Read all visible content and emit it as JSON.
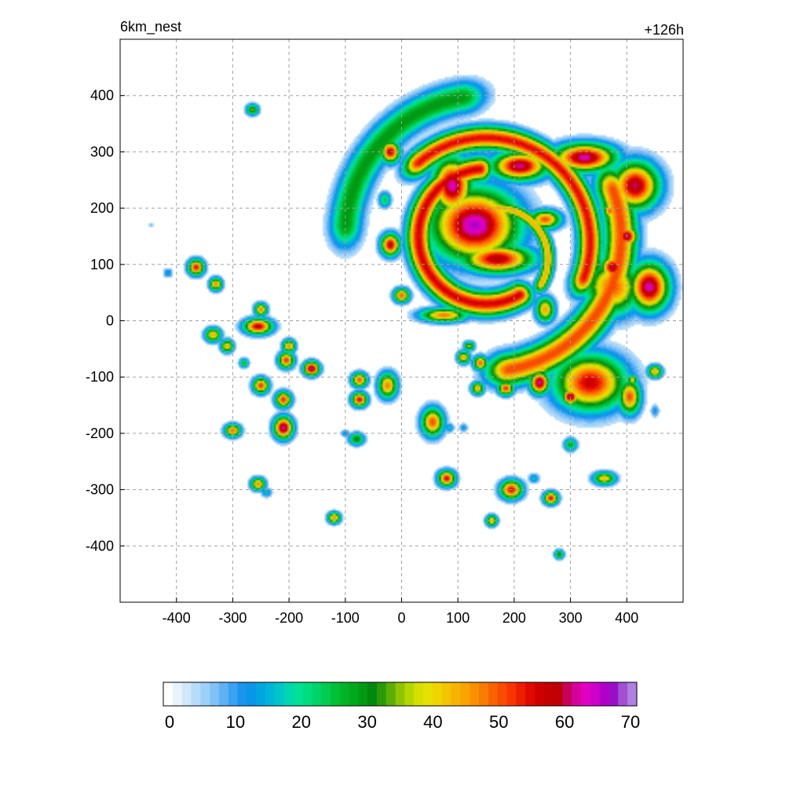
{
  "chart_data": {
    "type": "heatmap",
    "title": "6km_nest",
    "time_label": "+126h",
    "xlim": [
      -500,
      500
    ],
    "ylim": [
      -500,
      500
    ],
    "x_ticks": [
      -400,
      -300,
      -200,
      -100,
      0,
      100,
      200,
      300,
      400
    ],
    "y_ticks": [
      400,
      300,
      200,
      100,
      0,
      -100,
      -200,
      -300,
      -400
    ],
    "grid": true,
    "colorbar": {
      "min": 0,
      "max": 70,
      "tick_labels": [
        0,
        10,
        20,
        30,
        40,
        50,
        60,
        70
      ],
      "colors": [
        "#ffffff",
        "#e8f4fd",
        "#cfe8fb",
        "#b6dcfa",
        "#9dd0f8",
        "#80c2f6",
        "#5eb2f4",
        "#3aa2f2",
        "#1a94ee",
        "#0a96e8",
        "#00a6e0",
        "#00b6d8",
        "#00c6c8",
        "#00d6b0",
        "#00e098",
        "#00dc80",
        "#00d468",
        "#00cc50",
        "#00c038",
        "#00b428",
        "#00a81c",
        "#009a14",
        "#00880e",
        "#2a9a0a",
        "#5cae06",
        "#8ec402",
        "#b6d600",
        "#d6e000",
        "#e8e000",
        "#f0d400",
        "#f4c400",
        "#f6b400",
        "#f8a400",
        "#f89000",
        "#f87c00",
        "#f86400",
        "#f84c00",
        "#f83400",
        "#ee1c00",
        "#e00800",
        "#d00000",
        "#c40000",
        "#bc0004",
        "#c8005a",
        "#d8009c",
        "#e000c0",
        "#cc00c8",
        "#b000c8",
        "#9a10c8",
        "#a050d0",
        "#b080e0"
      ]
    },
    "features": [
      {
        "kind": "spiral-band",
        "cx": 150,
        "cy": 150,
        "r": 120,
        "a0": 95,
        "a1": 300,
        "w": 42,
        "peak": 48
      },
      {
        "kind": "spiral-band",
        "cx": 150,
        "cy": 140,
        "r": 185,
        "a0": -20,
        "a1": 130,
        "w": 40,
        "peak": 47
      },
      {
        "kind": "spiral-band",
        "cx": 170,
        "cy": 110,
        "r": 90,
        "a0": -30,
        "a1": 95,
        "w": 22,
        "peak": 38
      },
      {
        "kind": "spiral-band",
        "cx": 150,
        "cy": 150,
        "r": 240,
        "a0": -80,
        "a1": 20,
        "w": 55,
        "peak": 44
      },
      {
        "kind": "spiral-band",
        "cx": 150,
        "cy": 150,
        "r": 250,
        "a0": 100,
        "a1": 175,
        "w": 55,
        "peak": 26
      },
      {
        "kind": "blob",
        "x": 130,
        "y": 170,
        "sx": 55,
        "sy": 45,
        "peak": 52
      },
      {
        "kind": "blob",
        "x": 90,
        "y": 240,
        "sx": 25,
        "sy": 35,
        "peak": 50
      },
      {
        "kind": "blob",
        "x": 170,
        "y": 110,
        "sx": 45,
        "sy": 18,
        "peak": 47
      },
      {
        "kind": "blob",
        "x": 210,
        "y": 275,
        "sx": 35,
        "sy": 18,
        "peak": 49
      },
      {
        "kind": "blob",
        "x": 325,
        "y": 290,
        "sx": 40,
        "sy": 18,
        "peak": 50
      },
      {
        "kind": "blob",
        "x": 415,
        "y": 240,
        "sx": 30,
        "sy": 30,
        "peak": 48
      },
      {
        "kind": "blob",
        "x": 440,
        "y": 60,
        "sx": 25,
        "sy": 30,
        "peak": 50
      },
      {
        "kind": "blob",
        "x": 375,
        "y": 60,
        "sx": 35,
        "sy": 35,
        "peak": 40
      },
      {
        "kind": "blob",
        "x": 375,
        "y": 95,
        "sx": 15,
        "sy": 15,
        "peak": 48
      },
      {
        "kind": "blob",
        "x": 400,
        "y": 150,
        "sx": 14,
        "sy": 14,
        "peak": 48
      },
      {
        "kind": "blob",
        "x": 335,
        "y": -110,
        "sx": 45,
        "sy": 35,
        "peak": 45
      },
      {
        "kind": "blob",
        "x": 300,
        "y": -135,
        "sx": 10,
        "sy": 10,
        "peak": 50
      },
      {
        "kind": "blob",
        "x": -20,
        "y": 300,
        "sx": 12,
        "sy": 14,
        "peak": 46
      },
      {
        "kind": "blob",
        "x": -20,
        "y": 135,
        "sx": 12,
        "sy": 14,
        "peak": 46
      },
      {
        "kind": "blob",
        "x": 255,
        "y": 180,
        "sx": 20,
        "sy": 12,
        "peak": 40
      },
      {
        "kind": "blob",
        "x": 255,
        "y": 20,
        "sx": 12,
        "sy": 16,
        "peak": 36
      },
      {
        "kind": "blob",
        "x": 75,
        "y": 10,
        "sx": 30,
        "sy": 9,
        "peak": 38
      },
      {
        "kind": "blob",
        "x": 0,
        "y": 45,
        "sx": 10,
        "sy": 9,
        "peak": 40
      },
      {
        "kind": "blob",
        "x": -365,
        "y": 95,
        "sx": 10,
        "sy": 10,
        "peak": 44
      },
      {
        "kind": "blob",
        "x": -330,
        "y": 65,
        "sx": 8,
        "sy": 8,
        "peak": 38
      },
      {
        "kind": "blob",
        "x": -415,
        "y": 85,
        "sx": 6,
        "sy": 6,
        "peak": 12
      },
      {
        "kind": "blob",
        "x": -255,
        "y": -10,
        "sx": 18,
        "sy": 10,
        "peak": 46
      },
      {
        "kind": "blob",
        "x": -250,
        "y": 20,
        "sx": 8,
        "sy": 8,
        "peak": 38
      },
      {
        "kind": "blob",
        "x": -335,
        "y": -25,
        "sx": 10,
        "sy": 9,
        "peak": 36
      },
      {
        "kind": "blob",
        "x": -310,
        "y": -45,
        "sx": 8,
        "sy": 8,
        "peak": 36
      },
      {
        "kind": "blob",
        "x": -280,
        "y": -75,
        "sx": 6,
        "sy": 6,
        "peak": 22
      },
      {
        "kind": "blob",
        "x": -200,
        "y": -45,
        "sx": 8,
        "sy": 8,
        "peak": 38
      },
      {
        "kind": "blob",
        "x": -205,
        "y": -70,
        "sx": 10,
        "sy": 10,
        "peak": 42
      },
      {
        "kind": "blob",
        "x": -160,
        "y": -85,
        "sx": 10,
        "sy": 9,
        "peak": 50
      },
      {
        "kind": "blob",
        "x": -250,
        "y": -115,
        "sx": 10,
        "sy": 10,
        "peak": 42
      },
      {
        "kind": "blob",
        "x": -210,
        "y": -140,
        "sx": 10,
        "sy": 10,
        "peak": 42
      },
      {
        "kind": "blob",
        "x": -210,
        "y": -190,
        "sx": 12,
        "sy": 14,
        "peak": 50
      },
      {
        "kind": "blob",
        "x": -300,
        "y": -195,
        "sx": 10,
        "sy": 8,
        "peak": 40
      },
      {
        "kind": "blob",
        "x": -255,
        "y": -290,
        "sx": 9,
        "sy": 8,
        "peak": 38
      },
      {
        "kind": "blob",
        "x": -240,
        "y": -305,
        "sx": 7,
        "sy": 6,
        "peak": 14
      },
      {
        "kind": "blob",
        "x": -265,
        "y": 375,
        "sx": 8,
        "sy": 7,
        "peak": 28
      },
      {
        "kind": "blob",
        "x": -445,
        "y": 170,
        "sx": 4,
        "sy": 4,
        "peak": 6
      },
      {
        "kind": "blob",
        "x": -75,
        "y": -105,
        "sx": 10,
        "sy": 9,
        "peak": 40
      },
      {
        "kind": "blob",
        "x": -75,
        "y": -140,
        "sx": 10,
        "sy": 9,
        "peak": 44
      },
      {
        "kind": "blob",
        "x": -25,
        "y": -115,
        "sx": 12,
        "sy": 16,
        "peak": 38
      },
      {
        "kind": "blob",
        "x": -80,
        "y": -210,
        "sx": 10,
        "sy": 8,
        "peak": 26
      },
      {
        "kind": "blob",
        "x": -100,
        "y": -200,
        "sx": 6,
        "sy": 5,
        "peak": 12
      },
      {
        "kind": "blob",
        "x": -120,
        "y": -350,
        "sx": 8,
        "sy": 7,
        "peak": 38
      },
      {
        "kind": "blob",
        "x": 55,
        "y": -180,
        "sx": 14,
        "sy": 18,
        "peak": 40
      },
      {
        "kind": "blob",
        "x": 85,
        "y": -190,
        "sx": 6,
        "sy": 6,
        "peak": 14
      },
      {
        "kind": "blob",
        "x": 110,
        "y": -190,
        "sx": 6,
        "sy": 6,
        "peak": 10
      },
      {
        "kind": "blob",
        "x": 80,
        "y": -280,
        "sx": 11,
        "sy": 10,
        "peak": 44
      },
      {
        "kind": "blob",
        "x": 110,
        "y": -65,
        "sx": 8,
        "sy": 8,
        "peak": 36
      },
      {
        "kind": "blob",
        "x": 120,
        "y": -45,
        "sx": 7,
        "sy": 6,
        "peak": 30
      },
      {
        "kind": "blob",
        "x": 140,
        "y": -75,
        "sx": 9,
        "sy": 9,
        "peak": 40
      },
      {
        "kind": "blob",
        "x": 135,
        "y": -120,
        "sx": 8,
        "sy": 8,
        "peak": 36
      },
      {
        "kind": "blob",
        "x": 185,
        "y": -120,
        "sx": 10,
        "sy": 9,
        "peak": 42
      },
      {
        "kind": "blob",
        "x": 165,
        "y": -105,
        "sx": 8,
        "sy": 6,
        "peak": 14
      },
      {
        "kind": "blob",
        "x": 195,
        "y": -300,
        "sx": 14,
        "sy": 12,
        "peak": 44
      },
      {
        "kind": "blob",
        "x": 160,
        "y": -355,
        "sx": 7,
        "sy": 7,
        "peak": 36
      },
      {
        "kind": "blob",
        "x": 235,
        "y": -280,
        "sx": 7,
        "sy": 6,
        "peak": 14
      },
      {
        "kind": "blob",
        "x": 265,
        "y": -315,
        "sx": 9,
        "sy": 8,
        "peak": 44
      },
      {
        "kind": "blob",
        "x": 245,
        "y": -110,
        "sx": 12,
        "sy": 14,
        "peak": 50
      },
      {
        "kind": "blob",
        "x": 250,
        "y": -85,
        "sx": 8,
        "sy": 8,
        "peak": 36
      },
      {
        "kind": "blob",
        "x": 250,
        "y": -60,
        "sx": 5,
        "sy": 5,
        "peak": 12
      },
      {
        "kind": "blob",
        "x": 300,
        "y": -220,
        "sx": 8,
        "sy": 8,
        "peak": 24
      },
      {
        "kind": "blob",
        "x": 280,
        "y": -415,
        "sx": 6,
        "sy": 6,
        "peak": 26
      },
      {
        "kind": "blob",
        "x": 360,
        "y": -280,
        "sx": 14,
        "sy": 8,
        "peak": 34
      },
      {
        "kind": "blob",
        "x": 405,
        "y": -135,
        "sx": 14,
        "sy": 22,
        "peak": 40
      },
      {
        "kind": "blob",
        "x": 410,
        "y": -105,
        "sx": 7,
        "sy": 7,
        "peak": 32
      },
      {
        "kind": "blob",
        "x": 450,
        "y": -90,
        "sx": 9,
        "sy": 8,
        "peak": 36
      },
      {
        "kind": "blob",
        "x": 450,
        "y": -160,
        "sx": 6,
        "sy": 8,
        "peak": 10
      },
      {
        "kind": "blob",
        "x": 195,
        "y": -60,
        "sx": 5,
        "sy": 5,
        "peak": 8
      },
      {
        "kind": "blob",
        "x": -30,
        "y": 215,
        "sx": 8,
        "sy": 10,
        "peak": 20
      },
      {
        "kind": "blob",
        "x": 325,
        "y": 225,
        "sx": 10,
        "sy": 8,
        "peak": 30
      },
      {
        "kind": "blob",
        "x": 370,
        "y": 195,
        "sx": 9,
        "sy": 9,
        "peak": 40
      },
      {
        "kind": "blob",
        "x": 345,
        "y": 100,
        "sx": 10,
        "sy": 14,
        "peak": 28
      }
    ]
  }
}
